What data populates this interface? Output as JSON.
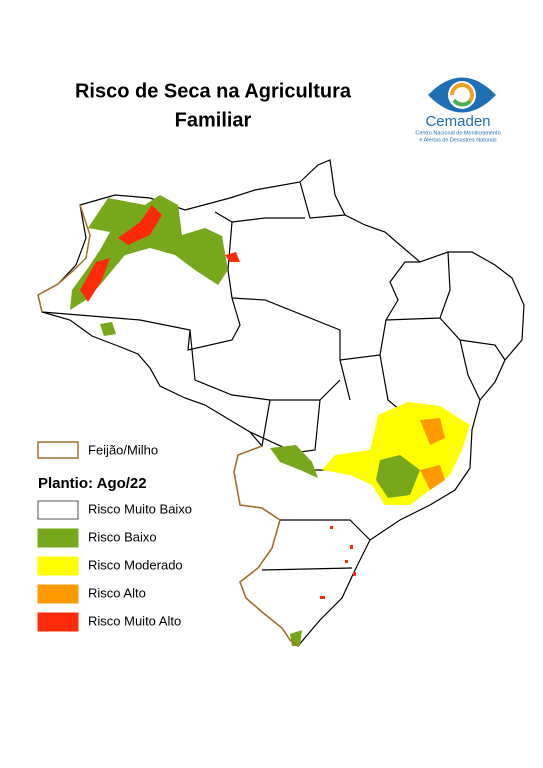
{
  "header": {
    "title_lines": [
      "Risco de Seca na Agricultura",
      "Familiar"
    ]
  },
  "logo": {
    "name": "Cemaden",
    "subtitle_lines": [
      "Centro Nacional de Monitoramento",
      "e Alertas de Desastres Naturais"
    ]
  },
  "legend": {
    "crop": {
      "label": "Feijão/Milho",
      "color": "#a0702a"
    },
    "planting": "Plantio: Ago/22",
    "items": [
      {
        "label": "Risco Muito Baixo",
        "color": "#ffffff"
      },
      {
        "label": "Risco Baixo",
        "color": "#77a81c"
      },
      {
        "label": "Risco Moderado",
        "color": "#ffff00"
      },
      {
        "label": "Risco Alto",
        "color": "#ff9900"
      },
      {
        "label": "Risco Muito Alto",
        "color": "#ff2a0a"
      }
    ]
  }
}
